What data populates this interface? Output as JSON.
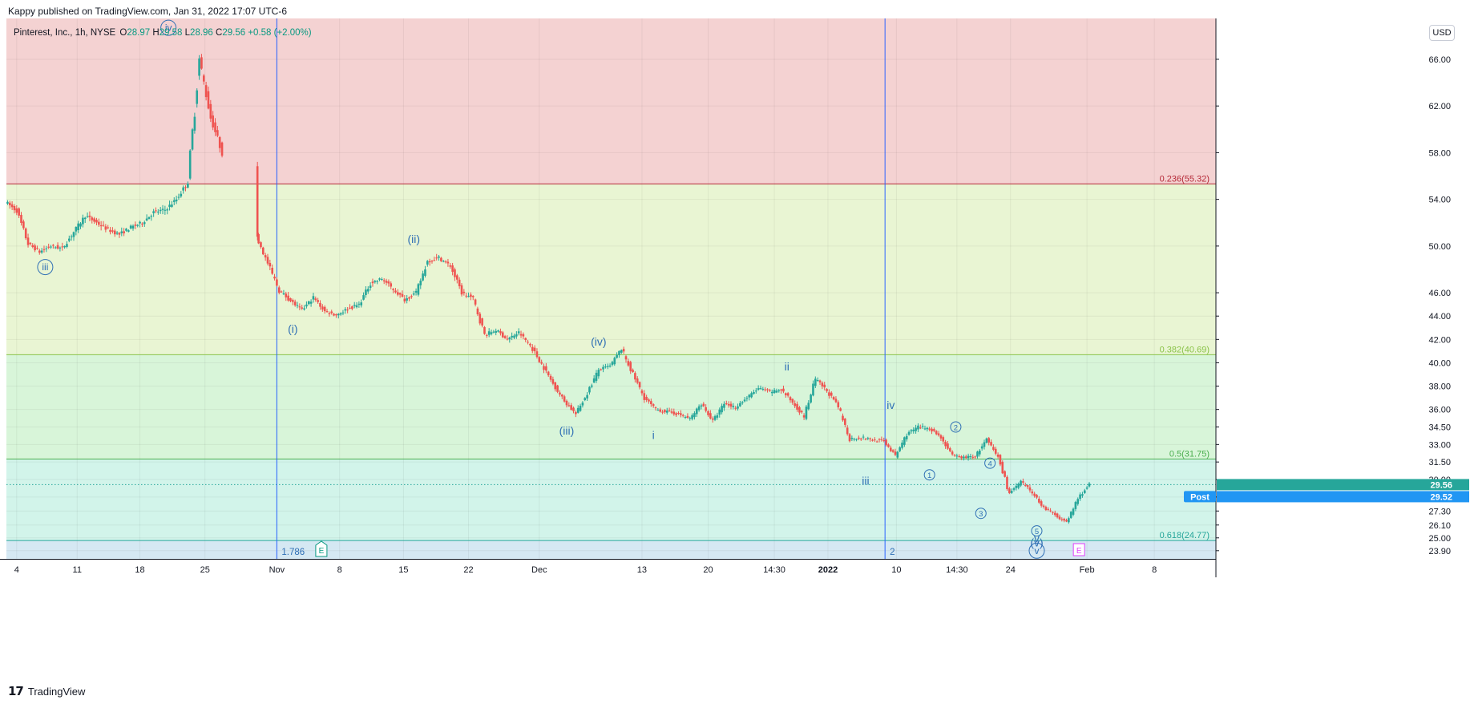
{
  "header": {
    "published": "Kappy published on TradingView.com, Jan 31, 2022 17:07 UTC-6"
  },
  "footer": {
    "logo": "17",
    "brand": "TradingView"
  },
  "price_scale": {
    "currency_button": "USD"
  },
  "legend": {
    "symbol": "Pinterest, Inc., 1h, NYSE",
    "o_label": "O",
    "o_value": "28.97",
    "h_label": "H",
    "h_value": "29.58",
    "l_label": "L",
    "l_value": "28.96",
    "c_label": "C",
    "c_value": "29.56",
    "change": "+0.58 (+2.00%)"
  },
  "colors": {
    "up": "#26a69a",
    "down": "#ef5350",
    "zone_top": "#f4d2d2",
    "zone_236_382": "#e9f5d3",
    "zone_382_5": "#d8f5d9",
    "zone_5_618": "#d2f4ea",
    "zone_bottom": "#d5e8f3",
    "line_236": "#b52a38",
    "line_382": "#8bc34a",
    "line_5": "#4caf50",
    "line_618": "#26a69a",
    "wave_label": "#2f6fb5",
    "vline": "#2962ff",
    "earnings_green": "#089981",
    "earnings_pink": "#e040fb"
  },
  "chart_data": {
    "type": "candlestick",
    "symbol": "Pinterest, Inc.",
    "interval": "1h",
    "exchange": "NYSE",
    "ylim": [
      23.2,
      69.5
    ],
    "y_ticks": [
      66.0,
      62.0,
      58.0,
      54.0,
      50.0,
      46.0,
      44.0,
      42.0,
      40.0,
      38.0,
      36.0,
      34.5,
      33.0,
      31.5,
      30.0,
      28.5,
      27.3,
      26.1,
      25.0,
      23.9
    ],
    "y_tick_labels": [
      "66.00",
      "62.00",
      "58.00",
      "54.00",
      "50.00",
      "46.00",
      "44.00",
      "42.00",
      "40.00",
      "38.00",
      "36.00",
      "34.50",
      "33.00",
      "31.50",
      "30.00",
      "28.50",
      "27.30",
      "26.10",
      "25.00",
      "23.90"
    ],
    "x_ticks": [
      {
        "label": "4",
        "bold": false
      },
      {
        "label": "11",
        "bold": false
      },
      {
        "label": "18",
        "bold": false
      },
      {
        "label": "25",
        "bold": false
      },
      {
        "label": "Nov",
        "bold": false
      },
      {
        "label": "8",
        "bold": false
      },
      {
        "label": "15",
        "bold": false
      },
      {
        "label": "22",
        "bold": false
      },
      {
        "label": "Dec",
        "bold": false
      },
      {
        "label": "13",
        "bold": false
      },
      {
        "label": "20",
        "bold": false
      },
      {
        "label": "14:30",
        "bold": false
      },
      {
        "label": "2022",
        "bold": true
      },
      {
        "label": "10",
        "bold": false
      },
      {
        "label": "14:30",
        "bold": false
      },
      {
        "label": "24",
        "bold": false
      },
      {
        "label": "Feb",
        "bold": false
      },
      {
        "label": "8",
        "bold": false
      }
    ],
    "x_tick_pos": [
      0.9,
      6.2,
      11.7,
      17.4,
      23.7,
      29.2,
      34.8,
      40.5,
      46.7,
      55.7,
      61.5,
      67.3,
      72.0,
      78.0,
      83.3,
      88.0,
      94.7,
      100.6
    ],
    "price_path": [
      [
        0,
        53.8
      ],
      [
        1,
        53.0
      ],
      [
        2,
        50.2
      ],
      [
        3,
        49.5
      ],
      [
        4,
        50.0
      ],
      [
        5,
        49.8
      ],
      [
        6,
        51.2
      ],
      [
        7,
        52.6
      ],
      [
        8,
        52.0
      ],
      [
        9,
        51.4
      ],
      [
        10,
        51.0
      ],
      [
        11,
        51.6
      ],
      [
        12,
        52.0
      ],
      [
        13,
        52.9
      ],
      [
        14,
        53.1
      ],
      [
        15,
        54.0
      ],
      [
        16,
        55.5
      ],
      [
        17,
        66.0
      ],
      [
        18,
        61.0
      ],
      [
        19,
        58.0
      ],
      [
        22,
        50.8
      ],
      [
        23,
        48.5
      ],
      [
        24,
        46.2
      ],
      [
        25,
        45.3
      ],
      [
        26,
        44.5
      ],
      [
        27,
        45.6
      ],
      [
        28,
        44.4
      ],
      [
        29,
        44.1
      ],
      [
        30,
        44.6
      ],
      [
        31,
        45.0
      ],
      [
        32,
        46.8
      ],
      [
        33,
        47.2
      ],
      [
        34,
        46.3
      ],
      [
        35,
        45.4
      ],
      [
        36,
        46.0
      ],
      [
        37,
        48.7
      ],
      [
        38,
        49.0
      ],
      [
        39,
        48.3
      ],
      [
        40,
        46.0
      ],
      [
        41,
        45.5
      ],
      [
        42,
        42.4
      ],
      [
        43,
        42.8
      ],
      [
        44,
        42.0
      ],
      [
        45,
        42.6
      ],
      [
        46,
        41.5
      ],
      [
        47,
        39.9
      ],
      [
        48,
        38.2
      ],
      [
        49,
        36.7
      ],
      [
        50,
        35.6
      ],
      [
        51,
        37.4
      ],
      [
        52,
        39.4
      ],
      [
        53,
        39.7
      ],
      [
        54,
        41.2
      ],
      [
        55,
        39.0
      ],
      [
        56,
        37.0
      ],
      [
        57,
        36.0
      ],
      [
        58,
        35.8
      ],
      [
        59,
        35.6
      ],
      [
        60,
        35.2
      ],
      [
        61,
        36.5
      ],
      [
        62,
        35.0
      ],
      [
        63,
        36.5
      ],
      [
        64,
        36.2
      ],
      [
        65,
        37.0
      ],
      [
        66,
        37.8
      ],
      [
        67,
        37.5
      ],
      [
        68,
        37.7
      ],
      [
        69,
        36.6
      ],
      [
        70,
        35.4
      ],
      [
        71,
        38.6
      ],
      [
        72,
        37.6
      ],
      [
        73,
        36.2
      ],
      [
        74,
        33.5
      ],
      [
        75,
        33.6
      ],
      [
        76,
        33.4
      ],
      [
        77,
        33.3
      ],
      [
        78,
        32.0
      ],
      [
        79,
        33.9
      ],
      [
        80,
        34.5
      ],
      [
        81,
        34.4
      ],
      [
        82,
        33.6
      ],
      [
        83,
        32.0
      ],
      [
        84,
        31.9
      ],
      [
        85,
        32.0
      ],
      [
        86,
        33.4
      ],
      [
        87,
        31.9
      ],
      [
        88,
        28.8
      ],
      [
        89,
        29.8
      ],
      [
        90,
        28.9
      ],
      [
        91,
        27.6
      ],
      [
        92,
        27.0
      ],
      [
        93,
        26.3
      ],
      [
        94,
        28.4
      ],
      [
        95,
        29.56
      ]
    ],
    "current_price": 29.56,
    "current_price_label": "29.56",
    "post_price": 29.52,
    "post_price_label": "29.52",
    "post_tag": "Post",
    "fib_levels": [
      {
        "label": "0.236(55.32)",
        "value": 55.32
      },
      {
        "label": "0.382(40.69)",
        "value": 40.69
      },
      {
        "label": "0.5(31.75)",
        "value": 31.75
      },
      {
        "label": "0.618(24.77)",
        "value": 24.77
      }
    ],
    "vertical_lines": [
      {
        "x": 23.7,
        "label": "1.786"
      },
      {
        "x": 77.0,
        "label": "2"
      }
    ],
    "earnings_markers": [
      {
        "x": 27.6,
        "text": "E"
      },
      {
        "x": 94.0,
        "text": "E"
      }
    ],
    "wave_labels": [
      {
        "text": "iv",
        "x": 14.2,
        "y": 68.7,
        "circled": true
      },
      {
        "text": "iii",
        "x": 3.4,
        "y": 48.2,
        "circled": true
      },
      {
        "text": "(ii)",
        "x": 35.7,
        "y": 50.6,
        "circled": false
      },
      {
        "text": "(i)",
        "x": 25.1,
        "y": 42.9,
        "circled": false
      },
      {
        "text": "(iv)",
        "x": 51.9,
        "y": 41.8,
        "circled": false
      },
      {
        "text": "(iii)",
        "x": 49.1,
        "y": 34.2,
        "circled": false
      },
      {
        "text": "i",
        "x": 56.7,
        "y": 33.8,
        "circled": false
      },
      {
        "text": "ii",
        "x": 68.4,
        "y": 39.7,
        "circled": false
      },
      {
        "text": "iv",
        "x": 77.5,
        "y": 36.4,
        "circled": false
      },
      {
        "text": "iii",
        "x": 75.3,
        "y": 29.9,
        "circled": false
      },
      {
        "text": "2",
        "x": 83.2,
        "y": 34.5,
        "circled": true
      },
      {
        "text": "1",
        "x": 80.9,
        "y": 30.4,
        "circled": true
      },
      {
        "text": "4",
        "x": 86.2,
        "y": 31.4,
        "circled": true
      },
      {
        "text": "3",
        "x": 85.4,
        "y": 27.1,
        "circled": true
      },
      {
        "text": "5",
        "x": 90.3,
        "y": 25.6,
        "circled": true
      },
      {
        "text": "v",
        "x": 90.3,
        "y": 25.0,
        "circled": false
      },
      {
        "text": "(v)",
        "x": 90.3,
        "y": 24.6,
        "circled": false
      },
      {
        "text": "v",
        "x": 90.3,
        "y": 23.9,
        "circled": true
      }
    ]
  }
}
